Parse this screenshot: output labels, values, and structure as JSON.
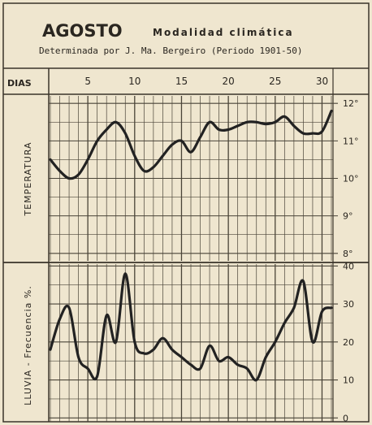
{
  "header": {
    "title": "AGOSTO",
    "title_suffix": "Modalidad climática",
    "subtitle": "Determinada por J. Ma. Bergeiro (Periodo 1901-50)"
  },
  "chart_data": [
    {
      "type": "line",
      "panel": "top",
      "ylabel": "TEMPERATURA",
      "xlabel": "DIAS",
      "x_ticks": [
        5,
        10,
        15,
        20,
        25,
        30
      ],
      "xlim": [
        1,
        31
      ],
      "ylim": [
        7.8,
        12.2
      ],
      "y_ticks": [
        8,
        9,
        10,
        11,
        12
      ],
      "y_tick_labels": [
        "8°",
        "9°",
        "10°",
        "11°",
        "12°"
      ],
      "grid": true,
      "x": [
        1,
        2,
        3,
        4,
        5,
        6,
        7,
        8,
        9,
        10,
        11,
        12,
        13,
        14,
        15,
        16,
        17,
        18,
        19,
        20,
        21,
        22,
        23,
        24,
        25,
        26,
        27,
        28,
        29,
        30,
        31
      ],
      "values": [
        10.5,
        10.2,
        10.0,
        10.1,
        10.5,
        11.0,
        11.3,
        11.5,
        11.2,
        10.6,
        10.2,
        10.3,
        10.6,
        10.9,
        11.0,
        10.7,
        11.1,
        11.5,
        11.3,
        11.3,
        11.4,
        11.5,
        11.5,
        11.45,
        11.5,
        11.65,
        11.4,
        11.2,
        11.2,
        11.25,
        11.8
      ]
    },
    {
      "type": "line",
      "panel": "bottom",
      "ylabel": "LLUVIA - Frecuencia %.",
      "xlabel": "DIAS",
      "x_ticks": [
        5,
        10,
        15,
        20,
        25,
        30
      ],
      "xlim": [
        1,
        31
      ],
      "ylim": [
        -1,
        40.5
      ],
      "y_ticks": [
        0,
        10,
        20,
        30,
        40
      ],
      "y_tick_labels": [
        "0",
        "10",
        "20",
        "30",
        "40"
      ],
      "grid": true,
      "x": [
        1,
        2,
        3,
        4,
        5,
        6,
        7,
        8,
        9,
        10,
        11,
        12,
        13,
        14,
        15,
        16,
        17,
        18,
        19,
        20,
        21,
        22,
        23,
        24,
        25,
        26,
        27,
        28,
        29,
        30,
        31
      ],
      "values": [
        18,
        26,
        29,
        16,
        13,
        11,
        27,
        20,
        38,
        20,
        17,
        18,
        21,
        18,
        16,
        14,
        13,
        19,
        15,
        16,
        14,
        13,
        10,
        16,
        20,
        25,
        29,
        36,
        20,
        28,
        29
      ]
    }
  ]
}
